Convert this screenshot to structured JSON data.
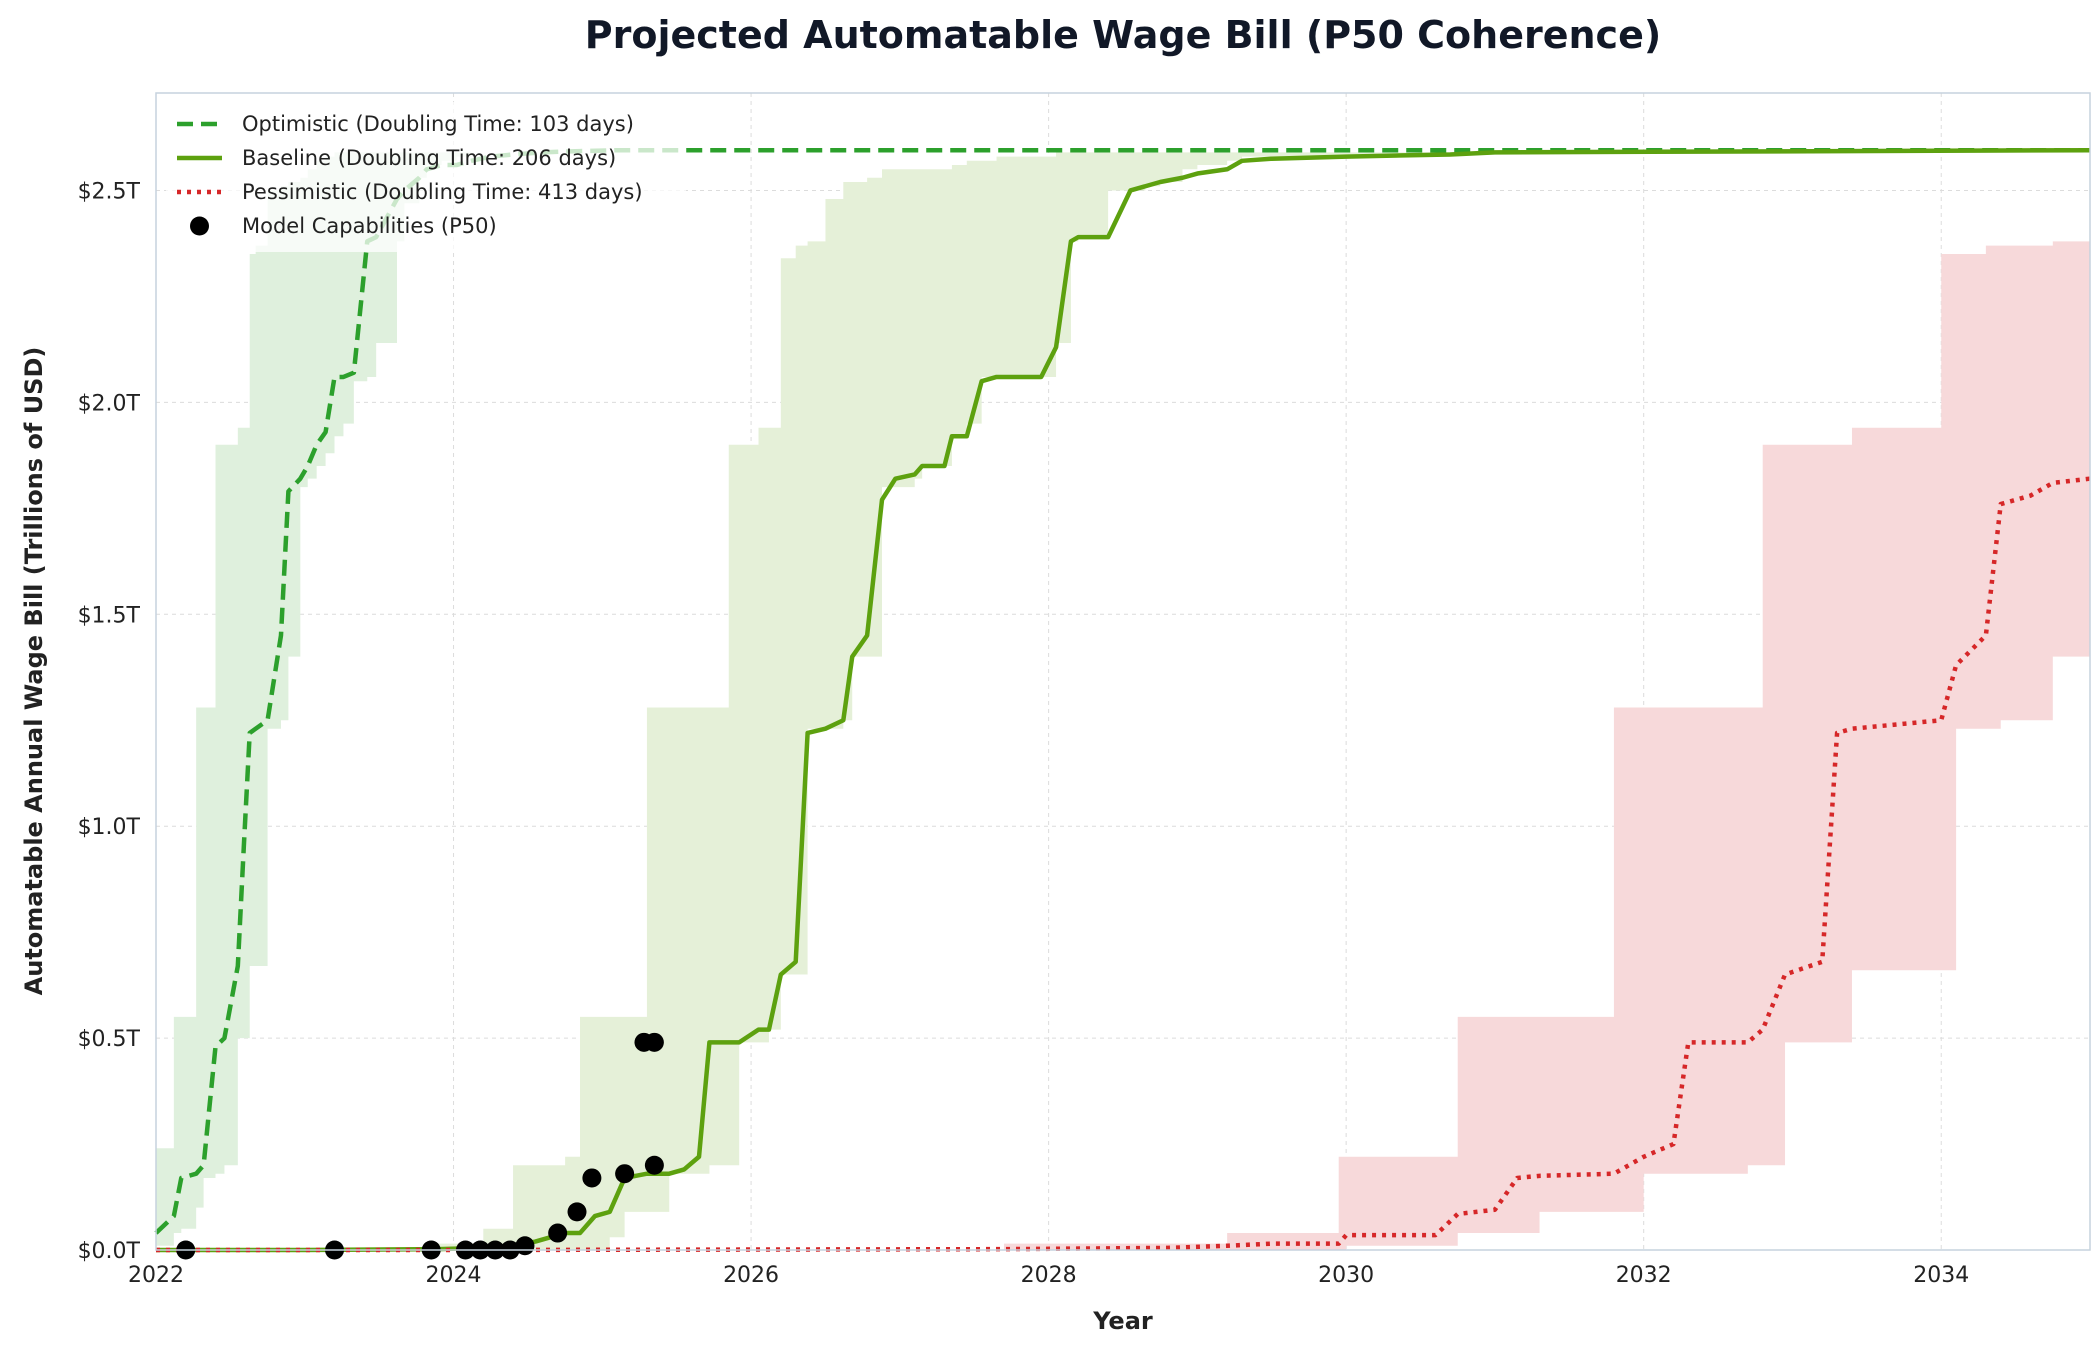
{
  "chart_data": {
    "type": "line",
    "title": "Projected Automatable Wage Bill (P50 Coherence)",
    "xlabel": "Year",
    "ylabel": "Automatable Annual Wage Bill (Trillions of USD)",
    "xlim": [
      2022,
      2035
    ],
    "ylim": [
      0,
      2.73
    ],
    "x_ticks": [
      2022,
      2024,
      2026,
      2028,
      2030,
      2032,
      2034
    ],
    "x_tick_labels": [
      "2022",
      "2024",
      "2026",
      "2028",
      "2030",
      "2032",
      "2034"
    ],
    "y_ticks": [
      0,
      0.5,
      1.0,
      1.5,
      2.0,
      2.5
    ],
    "y_tick_labels": [
      "$0.0T",
      "$0.5T",
      "$1.0T",
      "$1.5T",
      "$2.0T",
      "$2.5T"
    ],
    "grid": true,
    "legend_position": "top-left",
    "series": [
      {
        "name": "Optimistic (Doubling Time: 103 days)",
        "style": "dashed",
        "color": "#2ca02c",
        "band_color": "#dff0dd",
        "x": [
          2022.0,
          2022.12,
          2022.17,
          2022.27,
          2022.32,
          2022.4,
          2022.46,
          2022.55,
          2022.59,
          2022.63,
          2022.67,
          2022.75,
          2022.84,
          2022.89,
          2022.97,
          2023.02,
          2023.08,
          2023.14,
          2023.2,
          2023.26,
          2023.33,
          2023.42,
          2023.48,
          2023.62,
          2023.67,
          2023.77,
          2023.82,
          2023.92,
          2024.02,
          2024.12,
          2024.25,
          2024.4,
          2024.6,
          2024.85,
          2025.1,
          2035.0
        ],
        "values": [
          0.04,
          0.08,
          0.17,
          0.18,
          0.2,
          0.48,
          0.5,
          0.67,
          0.95,
          1.22,
          1.23,
          1.25,
          1.45,
          1.79,
          1.82,
          1.85,
          1.9,
          1.93,
          2.06,
          2.06,
          2.07,
          2.38,
          2.39,
          2.48,
          2.5,
          2.53,
          2.55,
          2.56,
          2.56,
          2.57,
          2.58,
          2.585,
          2.59,
          2.593,
          2.595,
          2.595
        ],
        "lower": [
          0.01,
          0.04,
          0.05,
          0.1,
          0.17,
          0.18,
          0.2,
          0.5,
          0.5,
          0.67,
          0.67,
          1.23,
          1.25,
          1.4,
          1.8,
          1.82,
          1.85,
          1.88,
          1.92,
          1.95,
          2.05,
          2.06,
          2.14,
          2.38,
          2.47,
          2.53,
          2.56,
          2.57,
          2.58,
          2.59,
          2.59,
          2.59,
          2.59,
          2.59,
          2.59,
          2.59
        ],
        "upper": [
          0.24,
          0.55,
          0.55,
          1.28,
          1.28,
          1.9,
          1.9,
          1.94,
          1.94,
          2.35,
          2.37,
          2.5,
          2.51,
          2.52,
          2.53,
          2.55,
          2.57,
          2.58,
          2.59,
          2.59,
          2.59,
          2.59,
          2.59,
          2.59,
          2.59,
          2.59,
          2.59,
          2.59,
          2.59,
          2.59,
          2.59,
          2.59,
          2.59,
          2.59,
          2.59,
          2.59
        ]
      },
      {
        "name": "Baseline (Doubling Time: 206 days)",
        "style": "solid",
        "color": "#5da10f",
        "band_color": "#e5f0d8",
        "x": [
          2022.0,
          2023.0,
          2023.9,
          2024.2,
          2024.4,
          2024.55,
          2024.75,
          2024.85,
          2024.95,
          2025.05,
          2025.15,
          2025.3,
          2025.45,
          2025.55,
          2025.65,
          2025.72,
          2025.85,
          2025.92,
          2026.05,
          2026.12,
          2026.2,
          2026.3,
          2026.38,
          2026.5,
          2026.62,
          2026.68,
          2026.78,
          2026.88,
          2026.97,
          2027.1,
          2027.15,
          2027.3,
          2027.35,
          2027.45,
          2027.55,
          2027.65,
          2027.95,
          2028.05,
          2028.15,
          2028.2,
          2028.4,
          2028.55,
          2028.65,
          2028.75,
          2028.9,
          2029.0,
          2029.2,
          2029.3,
          2029.5,
          2030.0,
          2030.7,
          2031.0,
          2035.0
        ],
        "values": [
          0.0,
          0.0,
          0.002,
          0.005,
          0.01,
          0.02,
          0.04,
          0.04,
          0.08,
          0.09,
          0.17,
          0.18,
          0.18,
          0.19,
          0.22,
          0.49,
          0.49,
          0.49,
          0.52,
          0.52,
          0.65,
          0.68,
          1.22,
          1.23,
          1.25,
          1.4,
          1.45,
          1.77,
          1.82,
          1.83,
          1.85,
          1.85,
          1.92,
          1.92,
          2.05,
          2.06,
          2.06,
          2.13,
          2.38,
          2.39,
          2.39,
          2.5,
          2.51,
          2.52,
          2.53,
          2.54,
          2.55,
          2.57,
          2.575,
          2.58,
          2.585,
          2.59,
          2.595
        ],
        "lower": [
          0.0,
          0.0,
          0.0,
          0.0,
          0.0,
          0.0,
          0.0,
          0.0,
          0.0,
          0.03,
          0.09,
          0.09,
          0.18,
          0.18,
          0.18,
          0.2,
          0.2,
          0.49,
          0.49,
          0.52,
          0.65,
          0.65,
          1.23,
          1.23,
          1.25,
          1.4,
          1.4,
          1.8,
          1.8,
          1.82,
          1.85,
          1.85,
          1.92,
          1.95,
          2.06,
          2.06,
          2.06,
          2.14,
          2.38,
          2.39,
          2.5,
          2.5,
          2.51,
          2.52,
          2.55,
          2.56,
          2.57,
          2.58,
          2.58,
          2.58,
          2.59,
          2.59,
          2.59
        ],
        "upper": [
          0.0,
          0.0,
          0.015,
          0.05,
          0.2,
          0.2,
          0.22,
          0.55,
          0.55,
          0.55,
          0.55,
          1.28,
          1.28,
          1.28,
          1.28,
          1.28,
          1.9,
          1.9,
          1.94,
          1.94,
          2.34,
          2.37,
          2.38,
          2.48,
          2.52,
          2.52,
          2.53,
          2.55,
          2.55,
          2.55,
          2.55,
          2.55,
          2.56,
          2.57,
          2.57,
          2.58,
          2.58,
          2.59,
          2.59,
          2.59,
          2.59,
          2.59,
          2.59,
          2.59,
          2.59,
          2.59,
          2.59,
          2.59,
          2.59,
          2.59,
          2.59,
          2.59,
          2.59
        ]
      },
      {
        "name": "Pessimistic (Doubling Time: 413 days)",
        "style": "dotted",
        "color": "#d62728",
        "band_color": "#f7d9da",
        "x": [
          2022.0,
          2024.0,
          2027.7,
          2028.8,
          2029.2,
          2029.5,
          2029.95,
          2030.0,
          2030.6,
          2030.75,
          2031.0,
          2031.15,
          2031.3,
          2031.8,
          2032.0,
          2032.2,
          2032.3,
          2032.7,
          2032.8,
          2032.95,
          2033.2,
          2033.3,
          2033.4,
          2033.7,
          2034.0,
          2034.1,
          2034.3,
          2034.4,
          2034.6,
          2034.75,
          2035.0
        ],
        "values": [
          0.0,
          0.0,
          0.002,
          0.005,
          0.01,
          0.015,
          0.015,
          0.035,
          0.035,
          0.085,
          0.095,
          0.17,
          0.175,
          0.18,
          0.22,
          0.25,
          0.49,
          0.49,
          0.52,
          0.65,
          0.68,
          1.22,
          1.23,
          1.24,
          1.25,
          1.38,
          1.45,
          1.76,
          1.78,
          1.81,
          1.82
        ],
        "lower": [
          0.0,
          0.0,
          0.0,
          0.0,
          0.0,
          0.0,
          0.0,
          0.01,
          0.01,
          0.04,
          0.04,
          0.04,
          0.09,
          0.09,
          0.18,
          0.18,
          0.18,
          0.2,
          0.2,
          0.49,
          0.49,
          0.49,
          0.66,
          0.66,
          0.66,
          1.23,
          1.23,
          1.25,
          1.25,
          1.4,
          1.4
        ],
        "upper": [
          0.0,
          0.0,
          0.015,
          0.015,
          0.04,
          0.04,
          0.22,
          0.22,
          0.22,
          0.55,
          0.55,
          0.55,
          0.55,
          1.28,
          1.28,
          1.28,
          1.28,
          1.28,
          1.9,
          1.9,
          1.9,
          1.9,
          1.94,
          1.94,
          2.35,
          2.35,
          2.37,
          2.37,
          2.37,
          2.38,
          2.38
        ]
      }
    ],
    "scatter": {
      "name": "Model Capabilities (P50)",
      "color": "#000000",
      "x": [
        2022.2,
        2023.2,
        2023.85,
        2024.08,
        2024.18,
        2024.28,
        2024.38,
        2024.48,
        2024.7,
        2024.83,
        2024.93,
        2025.15,
        2025.28,
        2025.35,
        2025.35
      ],
      "y": [
        0.0,
        0.0,
        0.0,
        0.0,
        0.0,
        0.0,
        0.0,
        0.01,
        0.04,
        0.09,
        0.17,
        0.18,
        0.49,
        0.49,
        0.2
      ]
    }
  }
}
